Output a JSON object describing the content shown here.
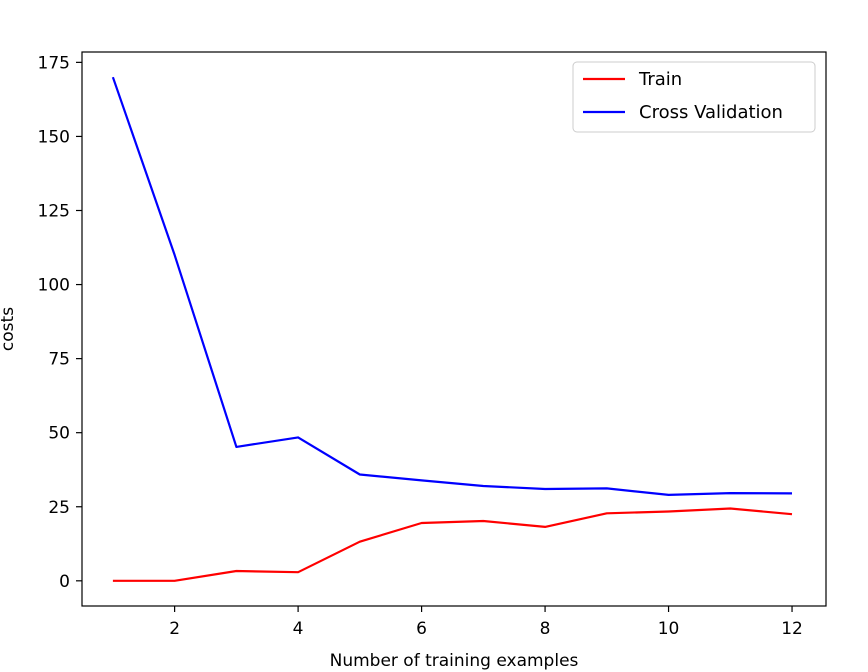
{
  "chart_data": {
    "type": "line",
    "title": "",
    "xlabel": "Number of training examples",
    "ylabel": "costs",
    "x": [
      1,
      2,
      3,
      4,
      5,
      6,
      7,
      8,
      9,
      10,
      11,
      12
    ],
    "xlim": [
      0.5,
      12.55
    ],
    "ylim": [
      -8.5,
      178.5
    ],
    "xticks": [
      2,
      4,
      6,
      8,
      10,
      12
    ],
    "yticks": [
      0,
      25,
      50,
      75,
      100,
      125,
      150,
      175
    ],
    "grid": false,
    "legend_position": "top-right",
    "series": [
      {
        "name": "Train",
        "color": "#ff0000",
        "values": [
          0.0,
          0.0,
          3.3,
          2.9,
          13.2,
          19.5,
          20.2,
          18.2,
          22.8,
          23.4,
          24.4,
          22.5
        ]
      },
      {
        "name": "Cross Validation",
        "color": "#0000ff",
        "values": [
          170.0,
          110.0,
          45.2,
          48.4,
          35.9,
          33.9,
          32.0,
          31.0,
          31.2,
          29.0,
          29.6,
          29.5
        ]
      }
    ]
  }
}
